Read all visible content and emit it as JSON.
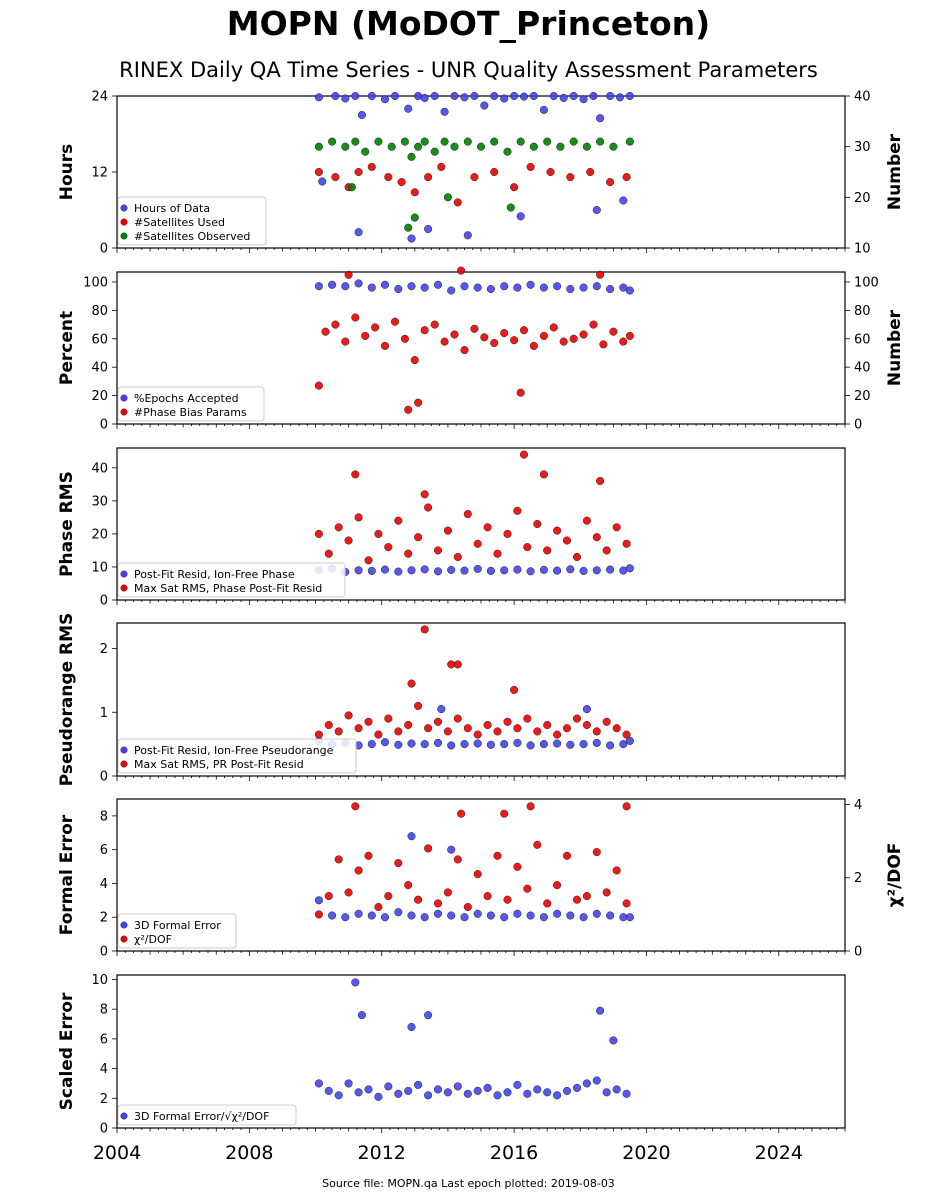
{
  "title": "MOPN (MoDOT_Princeton)",
  "subtitle": "RINEX Daily QA Time Series - UNR Quality Assessment Parameters",
  "footer": "Source file: MOPN.qa Last epoch plotted: 2019-08-03",
  "colors": {
    "blue": "#4444ee",
    "red": "#ee0000",
    "green": "#008000"
  },
  "chart_data": [
    {
      "type": "scatter",
      "ylabel": "Hours",
      "y2label": "Number",
      "xlim": [
        2004,
        2026
      ],
      "xticks": [
        2004,
        2008,
        2012,
        2016,
        2020,
        2024
      ],
      "ylim": [
        0,
        24
      ],
      "yticks": [
        0,
        12,
        24
      ],
      "y2lim": [
        10,
        40
      ],
      "y2ticks": [
        10,
        20,
        30,
        40
      ],
      "legend_position": "lower-left",
      "series": [
        {
          "name": "Hours of Data",
          "color": "#4444ee",
          "axis": "left",
          "x": [
            2010.1,
            2010.2,
            2010.6,
            2010.9,
            2011.2,
            2011.4,
            2011.7,
            2012.1,
            2012.4,
            2012.8,
            2013.1,
            2013.3,
            2013.6,
            2013.9,
            2014.2,
            2014.5,
            2014.8,
            2015.1,
            2015.4,
            2015.7,
            2016.0,
            2016.3,
            2016.6,
            2016.9,
            2017.2,
            2017.5,
            2017.8,
            2018.1,
            2018.4,
            2018.6,
            2018.9,
            2019.2,
            2019.5,
            2011.3,
            2012.9,
            2013.4,
            2014.6,
            2016.2,
            2018.5,
            2019.3
          ],
          "y": [
            23.8,
            10.5,
            24,
            23.6,
            24,
            21,
            24,
            23.5,
            24,
            22,
            24,
            23.7,
            24,
            21.5,
            24,
            23.8,
            24,
            22.5,
            24,
            23.6,
            24,
            23.9,
            24,
            21.8,
            24,
            23.7,
            24,
            23.5,
            24,
            20.5,
            24,
            23.8,
            24,
            2.5,
            1.5,
            3,
            2,
            5,
            6,
            7.5
          ]
        },
        {
          "name": "#Satellites Used",
          "color": "#ee0000",
          "axis": "right",
          "x": [
            2010.1,
            2010.6,
            2011.0,
            2011.3,
            2011.7,
            2012.2,
            2012.6,
            2013.0,
            2013.4,
            2013.8,
            2014.3,
            2014.8,
            2015.4,
            2016.0,
            2016.5,
            2017.1,
            2017.7,
            2018.3,
            2018.9,
            2019.4
          ],
          "y": [
            25,
            24,
            22,
            25,
            26,
            24,
            23,
            21,
            24,
            26,
            19,
            24,
            25,
            22,
            26,
            25,
            24,
            25,
            23,
            24
          ]
        },
        {
          "name": "#Satellites Observed",
          "color": "#008000",
          "axis": "right",
          "x": [
            2010.1,
            2010.5,
            2010.9,
            2011.2,
            2011.5,
            2011.9,
            2012.3,
            2012.7,
            2012.9,
            2013.1,
            2013.3,
            2013.6,
            2013.9,
            2014.2,
            2014.6,
            2015.0,
            2015.4,
            2015.8,
            2016.2,
            2016.6,
            2017.0,
            2017.4,
            2017.8,
            2018.2,
            2018.6,
            2019.0,
            2019.5,
            2011.1,
            2012.8,
            2013.0,
            2014.0,
            2015.9
          ],
          "y": [
            30,
            31,
            30,
            31,
            29,
            31,
            30,
            31,
            28,
            30,
            31,
            29,
            31,
            30,
            31,
            30,
            31,
            29,
            31,
            30,
            31,
            30,
            31,
            30,
            31,
            30,
            31,
            22,
            14,
            16,
            20,
            18
          ]
        }
      ]
    },
    {
      "type": "scatter",
      "ylabel": "Percent",
      "y2label": "Number",
      "xlim": [
        2004,
        2026
      ],
      "xticks": [
        2004,
        2008,
        2012,
        2016,
        2020,
        2024
      ],
      "ylim": [
        0,
        107
      ],
      "yticks": [
        0,
        20,
        40,
        60,
        80,
        100
      ],
      "y2lim": [
        0,
        107
      ],
      "y2ticks": [
        0,
        20,
        40,
        60,
        80,
        100
      ],
      "legend_position": "lower-left",
      "series": [
        {
          "name": "%Epochs Accepted",
          "color": "#4444ee",
          "axis": "left",
          "x": [
            2010.1,
            2010.5,
            2010.9,
            2011.3,
            2011.7,
            2012.1,
            2012.5,
            2012.9,
            2013.3,
            2013.7,
            2014.1,
            2014.5,
            2014.9,
            2015.3,
            2015.7,
            2016.1,
            2016.5,
            2016.9,
            2017.3,
            2017.7,
            2018.1,
            2018.5,
            2018.9,
            2019.3,
            2019.5
          ],
          "y": [
            97,
            98,
            97,
            99,
            96,
            98,
            95,
            97,
            96,
            98,
            94,
            97,
            96,
            95,
            97,
            96,
            98,
            96,
            97,
            95,
            96,
            97,
            95,
            96,
            94
          ]
        },
        {
          "name": "#Phase Bias Params",
          "color": "#ee0000",
          "axis": "right",
          "x": [
            2010.1,
            2010.3,
            2010.6,
            2010.9,
            2011.2,
            2011.5,
            2011.8,
            2012.1,
            2012.4,
            2012.7,
            2013.0,
            2013.3,
            2013.6,
            2013.9,
            2014.2,
            2014.5,
            2014.8,
            2015.1,
            2015.4,
            2015.7,
            2016.0,
            2016.3,
            2016.6,
            2016.9,
            2017.2,
            2017.5,
            2017.8,
            2018.1,
            2018.4,
            2018.7,
            2019.0,
            2019.3,
            2019.5,
            2011.0,
            2012.8,
            2013.1,
            2014.4,
            2016.2,
            2018.6
          ],
          "y": [
            27,
            65,
            70,
            58,
            75,
            62,
            68,
            55,
            72,
            60,
            45,
            66,
            70,
            58,
            63,
            52,
            67,
            61,
            57,
            64,
            59,
            66,
            55,
            62,
            68,
            58,
            60,
            63,
            70,
            56,
            65,
            58,
            62,
            105,
            10,
            15,
            108,
            22,
            105
          ]
        }
      ]
    },
    {
      "type": "scatter",
      "ylabel": "Phase RMS",
      "xlim": [
        2004,
        2026
      ],
      "xticks": [
        2004,
        2008,
        2012,
        2016,
        2020,
        2024
      ],
      "ylim": [
        0,
        46
      ],
      "yticks": [
        0,
        10,
        20,
        30,
        40
      ],
      "legend_position": "lower-left",
      "series": [
        {
          "name": "Post-Fit Resid, Ion-Free Phase",
          "color": "#4444ee",
          "axis": "left",
          "x": [
            2010.1,
            2010.5,
            2010.9,
            2011.3,
            2011.7,
            2012.1,
            2012.5,
            2012.9,
            2013.3,
            2013.7,
            2014.1,
            2014.5,
            2014.9,
            2015.3,
            2015.7,
            2016.1,
            2016.5,
            2016.9,
            2017.3,
            2017.7,
            2018.1,
            2018.5,
            2018.9,
            2019.3,
            2019.5
          ],
          "y": [
            9,
            9.5,
            8.5,
            9,
            8.8,
            9.2,
            8.6,
            9,
            9.3,
            8.7,
            9.1,
            8.9,
            9.4,
            8.8,
            9,
            9.2,
            8.7,
            9.1,
            8.9,
            9.3,
            8.8,
            9,
            9.2,
            8.9,
            9.6
          ]
        },
        {
          "name": "Max Sat RMS, Phase Post-Fit Resid",
          "color": "#ee0000",
          "axis": "left",
          "x": [
            2010.1,
            2010.4,
            2010.7,
            2011.0,
            2011.3,
            2011.6,
            2011.9,
            2012.2,
            2012.5,
            2012.8,
            2013.1,
            2013.4,
            2013.7,
            2014.0,
            2014.3,
            2014.6,
            2014.9,
            2015.2,
            2015.5,
            2015.8,
            2016.1,
            2016.4,
            2016.7,
            2017.0,
            2017.3,
            2017.6,
            2017.9,
            2018.2,
            2018.5,
            2018.8,
            2019.1,
            2019.4,
            2011.2,
            2013.3,
            2016.3,
            2016.9,
            2018.6
          ],
          "y": [
            20,
            14,
            22,
            18,
            25,
            12,
            20,
            16,
            24,
            14,
            19,
            28,
            15,
            21,
            13,
            26,
            17,
            22,
            14,
            20,
            27,
            16,
            23,
            15,
            21,
            18,
            13,
            24,
            19,
            15,
            22,
            17,
            38,
            32,
            44,
            38,
            36
          ]
        }
      ]
    },
    {
      "type": "scatter",
      "ylabel": "Pseudorange RMS",
      "xlim": [
        2004,
        2026
      ],
      "xticks": [
        2004,
        2008,
        2012,
        2016,
        2020,
        2024
      ],
      "ylim": [
        0,
        2.4
      ],
      "yticks": [
        0,
        1,
        2
      ],
      "legend_position": "lower-left",
      "series": [
        {
          "name": "Post-Fit Resid, Ion-Free Pseudorange",
          "color": "#4444ee",
          "axis": "left",
          "x": [
            2010.1,
            2010.5,
            2010.9,
            2011.3,
            2011.7,
            2012.1,
            2012.5,
            2012.9,
            2013.3,
            2013.7,
            2014.1,
            2014.5,
            2014.9,
            2015.3,
            2015.7,
            2016.1,
            2016.5,
            2016.9,
            2017.3,
            2017.7,
            2018.1,
            2018.5,
            2018.9,
            2019.3,
            2019.5,
            2013.8,
            2018.2
          ],
          "y": [
            0.55,
            0.5,
            0.52,
            0.48,
            0.5,
            0.53,
            0.49,
            0.51,
            0.5,
            0.52,
            0.48,
            0.5,
            0.51,
            0.49,
            0.5,
            0.52,
            0.48,
            0.5,
            0.51,
            0.49,
            0.5,
            0.52,
            0.48,
            0.5,
            0.55,
            1.05,
            1.05
          ]
        },
        {
          "name": "Max Sat RMS, PR Post-Fit Resid",
          "color": "#ee0000",
          "axis": "left",
          "x": [
            2010.1,
            2010.4,
            2010.7,
            2011.0,
            2011.3,
            2011.6,
            2011.9,
            2012.2,
            2012.5,
            2012.8,
            2013.1,
            2013.4,
            2013.7,
            2014.0,
            2014.3,
            2014.6,
            2014.9,
            2015.2,
            2015.5,
            2015.8,
            2016.1,
            2016.4,
            2016.7,
            2017.0,
            2017.3,
            2017.6,
            2017.9,
            2018.2,
            2018.5,
            2018.8,
            2019.1,
            2019.4,
            2013.3,
            2014.1,
            2014.3,
            2012.9,
            2016.0
          ],
          "y": [
            0.65,
            0.8,
            0.7,
            0.95,
            0.75,
            0.85,
            0.65,
            0.9,
            0.7,
            0.8,
            1.1,
            0.75,
            0.85,
            0.7,
            0.9,
            0.75,
            0.65,
            0.8,
            0.7,
            0.85,
            0.75,
            0.9,
            0.7,
            0.8,
            0.65,
            0.75,
            0.9,
            0.8,
            0.7,
            0.85,
            0.75,
            0.65,
            2.3,
            1.75,
            1.75,
            1.45,
            1.35
          ]
        }
      ]
    },
    {
      "type": "scatter",
      "ylabel": "Formal Error",
      "y2label": "χ²/DOF",
      "xlim": [
        2004,
        2026
      ],
      "xticks": [
        2004,
        2008,
        2012,
        2016,
        2020,
        2024
      ],
      "ylim": [
        0,
        9
      ],
      "yticks": [
        0,
        2,
        4,
        6,
        8
      ],
      "y2lim": [
        0,
        4.15
      ],
      "y2ticks": [
        0,
        2,
        4
      ],
      "legend_position": "lower-left",
      "series": [
        {
          "name": "3D Formal Error",
          "color": "#4444ee",
          "axis": "left",
          "x": [
            2010.1,
            2010.5,
            2010.9,
            2011.3,
            2011.7,
            2012.1,
            2012.5,
            2012.9,
            2013.3,
            2013.7,
            2014.1,
            2014.5,
            2014.9,
            2015.3,
            2015.7,
            2016.1,
            2016.5,
            2016.9,
            2017.3,
            2017.7,
            2018.1,
            2018.5,
            2018.9,
            2019.3,
            2019.5,
            2012.9,
            2014.1
          ],
          "y": [
            3,
            2.1,
            2,
            2.2,
            2.1,
            2,
            2.3,
            2.1,
            2,
            2.2,
            2.1,
            2,
            2.2,
            2.1,
            2,
            2.2,
            2.1,
            2,
            2.2,
            2.1,
            2,
            2.2,
            2.1,
            2,
            2,
            6.8,
            6
          ]
        },
        {
          "name": "χ²/DOF",
          "color": "#ee0000",
          "axis": "right",
          "x": [
            2010.1,
            2010.4,
            2010.7,
            2011.0,
            2011.3,
            2011.6,
            2011.9,
            2012.2,
            2012.5,
            2012.8,
            2013.1,
            2013.4,
            2013.7,
            2014.0,
            2014.3,
            2014.6,
            2014.9,
            2015.2,
            2015.5,
            2015.8,
            2016.1,
            2016.4,
            2016.7,
            2017.0,
            2017.3,
            2017.6,
            2017.9,
            2018.2,
            2018.5,
            2018.8,
            2019.1,
            2019.4,
            2011.2,
            2014.4,
            2015.7,
            2016.5,
            2019.4
          ],
          "y": [
            1,
            1.5,
            2.5,
            1.6,
            2.2,
            2.6,
            1.2,
            1.5,
            2.4,
            1.8,
            1.4,
            2.8,
            1.3,
            1.6,
            2.5,
            1.2,
            2.1,
            1.5,
            2.6,
            1.4,
            2.3,
            1.7,
            2.9,
            1.3,
            1.8,
            2.6,
            1.4,
            1.5,
            2.7,
            1.6,
            2.2,
            1.3,
            3.95,
            3.75,
            3.75,
            3.95,
            3.95
          ]
        }
      ]
    },
    {
      "type": "scatter",
      "ylabel": "Scaled Error",
      "xlim": [
        2004,
        2026
      ],
      "xticks": [
        2004,
        2008,
        2012,
        2016,
        2020,
        2024
      ],
      "ylim": [
        0,
        10.3
      ],
      "yticks": [
        0,
        2,
        4,
        6,
        8,
        10
      ],
      "legend_position": "lower-left",
      "series": [
        {
          "name": "3D Formal Error/√χ²/DOF",
          "color": "#4444ee",
          "axis": "left",
          "x": [
            2010.1,
            2010.4,
            2010.7,
            2011.0,
            2011.3,
            2011.6,
            2011.9,
            2012.2,
            2012.5,
            2012.8,
            2013.1,
            2013.4,
            2013.7,
            2014.0,
            2014.3,
            2014.6,
            2014.9,
            2015.2,
            2015.5,
            2015.8,
            2016.1,
            2016.4,
            2016.7,
            2017.0,
            2017.3,
            2017.6,
            2017.9,
            2018.2,
            2018.5,
            2018.8,
            2019.1,
            2019.4,
            2011.2,
            2011.4,
            2012.9,
            2013.4,
            2018.6,
            2019.0
          ],
          "y": [
            3,
            2.5,
            2.2,
            3,
            2.4,
            2.6,
            2.1,
            2.8,
            2.3,
            2.5,
            2.9,
            2.2,
            2.6,
            2.4,
            2.8,
            2.3,
            2.5,
            2.7,
            2.2,
            2.4,
            2.9,
            2.3,
            2.6,
            2.4,
            2.2,
            2.5,
            2.7,
            3,
            3.2,
            2.4,
            2.6,
            2.3,
            9.8,
            7.6,
            6.8,
            7.6,
            7.9,
            5.9
          ]
        }
      ]
    }
  ]
}
